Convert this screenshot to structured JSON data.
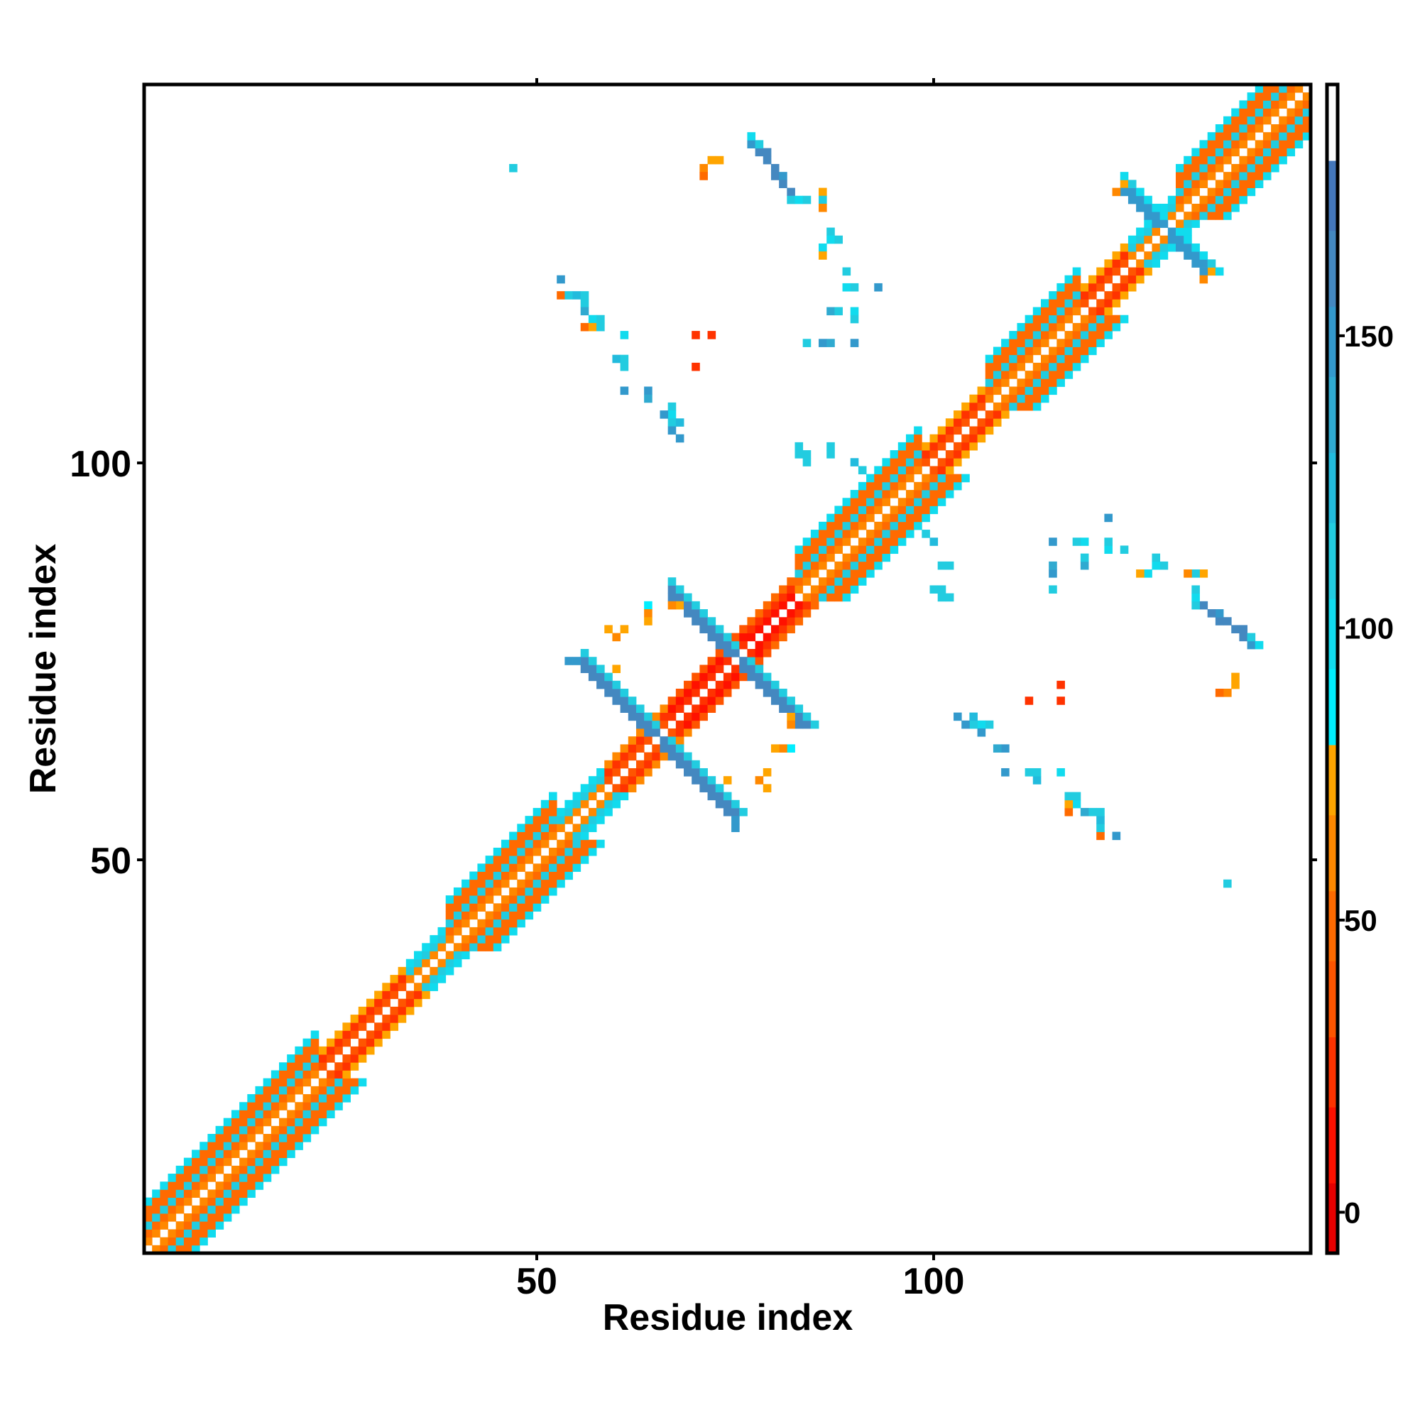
{
  "chart_data": {
    "type": "heatmap",
    "title": "",
    "xlabel": "Residue index",
    "ylabel": "Residue index",
    "n_residues": 147,
    "xlim": [
      0.5,
      147.5
    ],
    "ylim": [
      0.5,
      147.5
    ],
    "x_ticks": [
      {
        "value": 50,
        "label": "50"
      },
      {
        "value": 100,
        "label": "100"
      }
    ],
    "y_ticks": [
      {
        "value": 50,
        "label": "50"
      },
      {
        "value": 100,
        "label": "100"
      }
    ],
    "symmetric": true,
    "colorbar": {
      "range": [
        -7,
        193
      ],
      "ticks": [
        {
          "value": 0,
          "label": "0"
        },
        {
          "value": 50,
          "label": "50"
        },
        {
          "value": 100,
          "label": "100"
        },
        {
          "value": 150,
          "label": "150"
        }
      ],
      "bins": [
        {
          "max": 5,
          "color": "#e60000"
        },
        {
          "max": 18,
          "color": "#ff1100"
        },
        {
          "max": 30,
          "color": "#ff3300"
        },
        {
          "max": 43,
          "color": "#ff5500"
        },
        {
          "max": 55,
          "color": "#ff6a00"
        },
        {
          "max": 68,
          "color": "#ff8800"
        },
        {
          "max": 80,
          "color": "#ffa500"
        },
        {
          "max": 93,
          "color": "#00eeff"
        },
        {
          "max": 105,
          "color": "#11dbee"
        },
        {
          "max": 118,
          "color": "#22cce0"
        },
        {
          "max": 130,
          "color": "#22bbdd"
        },
        {
          "max": 143,
          "color": "#30aad0"
        },
        {
          "max": 155,
          "color": "#3399cc"
        },
        {
          "max": 168,
          "color": "#4488c0"
        },
        {
          "max": 180,
          "color": "#4477bb"
        },
        {
          "max": 193,
          "color": "#ffffff"
        }
      ]
    },
    "band_patterns": {
      "helix": [
        60,
        50,
        110,
        55,
        45,
        105
      ],
      "loop": [
        35,
        20,
        70
      ],
      "turn": [
        60,
        110,
        100
      ],
      "strand": [
        40,
        20,
        60
      ],
      "tight": [
        20,
        10,
        40
      ],
      "red": [
        15,
        30,
        50
      ]
    },
    "diagonal_segments": [
      {
        "start": 1,
        "end": 22,
        "type": "helix"
      },
      {
        "start": 23,
        "end": 33,
        "type": "loop"
      },
      {
        "start": 34,
        "end": 38,
        "type": "turn"
      },
      {
        "start": 39,
        "end": 52,
        "type": "helix"
      },
      {
        "start": 53,
        "end": 58,
        "type": "turn"
      },
      {
        "start": 59,
        "end": 66,
        "type": "strand"
      },
      {
        "start": 67,
        "end": 76,
        "type": "tight"
      },
      {
        "start": 77,
        "end": 82,
        "type": "red"
      },
      {
        "start": 83,
        "end": 98,
        "type": "helix"
      },
      {
        "start": 99,
        "end": 106,
        "type": "loop"
      },
      {
        "start": 107,
        "end": 118,
        "type": "helix"
      },
      {
        "start": 119,
        "end": 124,
        "type": "loop"
      },
      {
        "start": 125,
        "end": 130,
        "type": "turn"
      },
      {
        "start": 131,
        "end": 147,
        "type": "helix"
      }
    ],
    "antiparallel_arms": [
      {
        "sum": 131,
        "x_from": 56,
        "x_to": 65,
        "core": 160,
        "edge": 110
      },
      {
        "sum": 151,
        "x_from": 67,
        "x_to": 75,
        "core": 160,
        "edge": 110
      },
      {
        "sum": 259,
        "x_from": 124,
        "x_to": 129,
        "core": 150,
        "edge": 100
      }
    ],
    "contacts": [
      [
        77,
        140,
        150
      ],
      [
        78,
        139,
        165
      ],
      [
        78,
        140,
        110
      ],
      [
        79,
        138,
        165
      ],
      [
        79,
        139,
        160
      ],
      [
        80,
        137,
        165
      ],
      [
        80,
        136,
        160
      ],
      [
        81,
        136,
        150
      ],
      [
        81,
        135,
        165
      ],
      [
        82,
        134,
        160
      ],
      [
        82,
        133,
        110
      ],
      [
        83,
        133,
        100
      ],
      [
        84,
        133,
        110
      ],
      [
        77,
        141,
        95
      ],
      [
        71,
        137,
        60
      ],
      [
        72,
        138,
        70
      ],
      [
        73,
        138,
        75
      ],
      [
        71,
        136,
        55
      ],
      [
        86,
        134,
        70
      ],
      [
        86,
        133,
        110
      ],
      [
        86,
        132,
        65
      ],
      [
        87,
        129,
        110
      ],
      [
        87,
        128,
        100
      ],
      [
        88,
        128,
        110
      ],
      [
        86,
        127,
        105
      ],
      [
        86,
        126,
        80
      ],
      [
        89,
        124,
        110
      ],
      [
        93,
        122,
        150
      ],
      [
        89,
        122,
        100
      ],
      [
        90,
        122,
        110
      ],
      [
        87,
        119,
        140
      ],
      [
        88,
        119,
        110
      ],
      [
        90,
        119,
        100
      ],
      [
        90,
        118,
        110
      ],
      [
        84,
        115,
        110
      ],
      [
        86,
        115,
        150
      ],
      [
        87,
        115,
        140
      ],
      [
        90,
        115,
        150
      ],
      [
        53,
        123,
        150
      ],
      [
        53,
        121,
        55
      ],
      [
        54,
        121,
        110
      ],
      [
        55,
        121,
        120
      ],
      [
        56,
        121,
        110
      ],
      [
        56,
        120,
        110
      ],
      [
        56,
        119,
        140
      ],
      [
        57,
        118,
        100
      ],
      [
        58,
        118,
        110
      ],
      [
        56,
        117,
        55
      ],
      [
        57,
        117,
        70
      ],
      [
        58,
        117,
        110
      ],
      [
        61,
        116,
        105
      ],
      [
        60,
        113,
        130
      ],
      [
        61,
        113,
        110
      ],
      [
        61,
        112,
        110
      ],
      [
        61,
        109,
        150
      ],
      [
        64,
        109,
        150
      ],
      [
        64,
        108,
        140
      ],
      [
        67,
        107,
        110
      ],
      [
        67,
        106,
        95
      ],
      [
        66,
        106,
        150
      ],
      [
        67,
        105,
        110
      ],
      [
        68,
        105,
        120
      ],
      [
        67,
        104,
        150
      ],
      [
        68,
        103,
        150
      ],
      [
        70,
        116,
        20
      ],
      [
        72,
        116,
        20
      ],
      [
        70,
        112,
        20
      ],
      [
        47,
        137,
        110
      ],
      [
        83,
        102,
        110
      ],
      [
        83,
        101,
        110
      ],
      [
        87,
        102,
        110
      ],
      [
        90,
        100,
        130
      ],
      [
        91,
        99,
        110
      ],
      [
        87,
        101,
        110
      ],
      [
        84,
        101,
        110
      ],
      [
        84,
        100,
        110
      ],
      [
        59,
        79,
        70
      ],
      [
        61,
        79,
        75
      ],
      [
        60,
        78,
        65
      ],
      [
        64,
        82,
        85
      ],
      [
        64,
        81,
        60
      ],
      [
        64,
        80,
        70
      ],
      [
        67,
        82,
        60
      ],
      [
        68,
        82,
        75
      ],
      [
        55,
        75,
        150
      ],
      [
        54,
        75,
        150
      ],
      [
        60,
        74,
        70
      ],
      [
        124,
        135,
        70
      ],
      [
        123,
        134,
        60
      ],
      [
        125,
        135,
        110
      ],
      [
        130,
        131,
        70
      ],
      [
        131,
        130,
        60
      ]
    ]
  }
}
